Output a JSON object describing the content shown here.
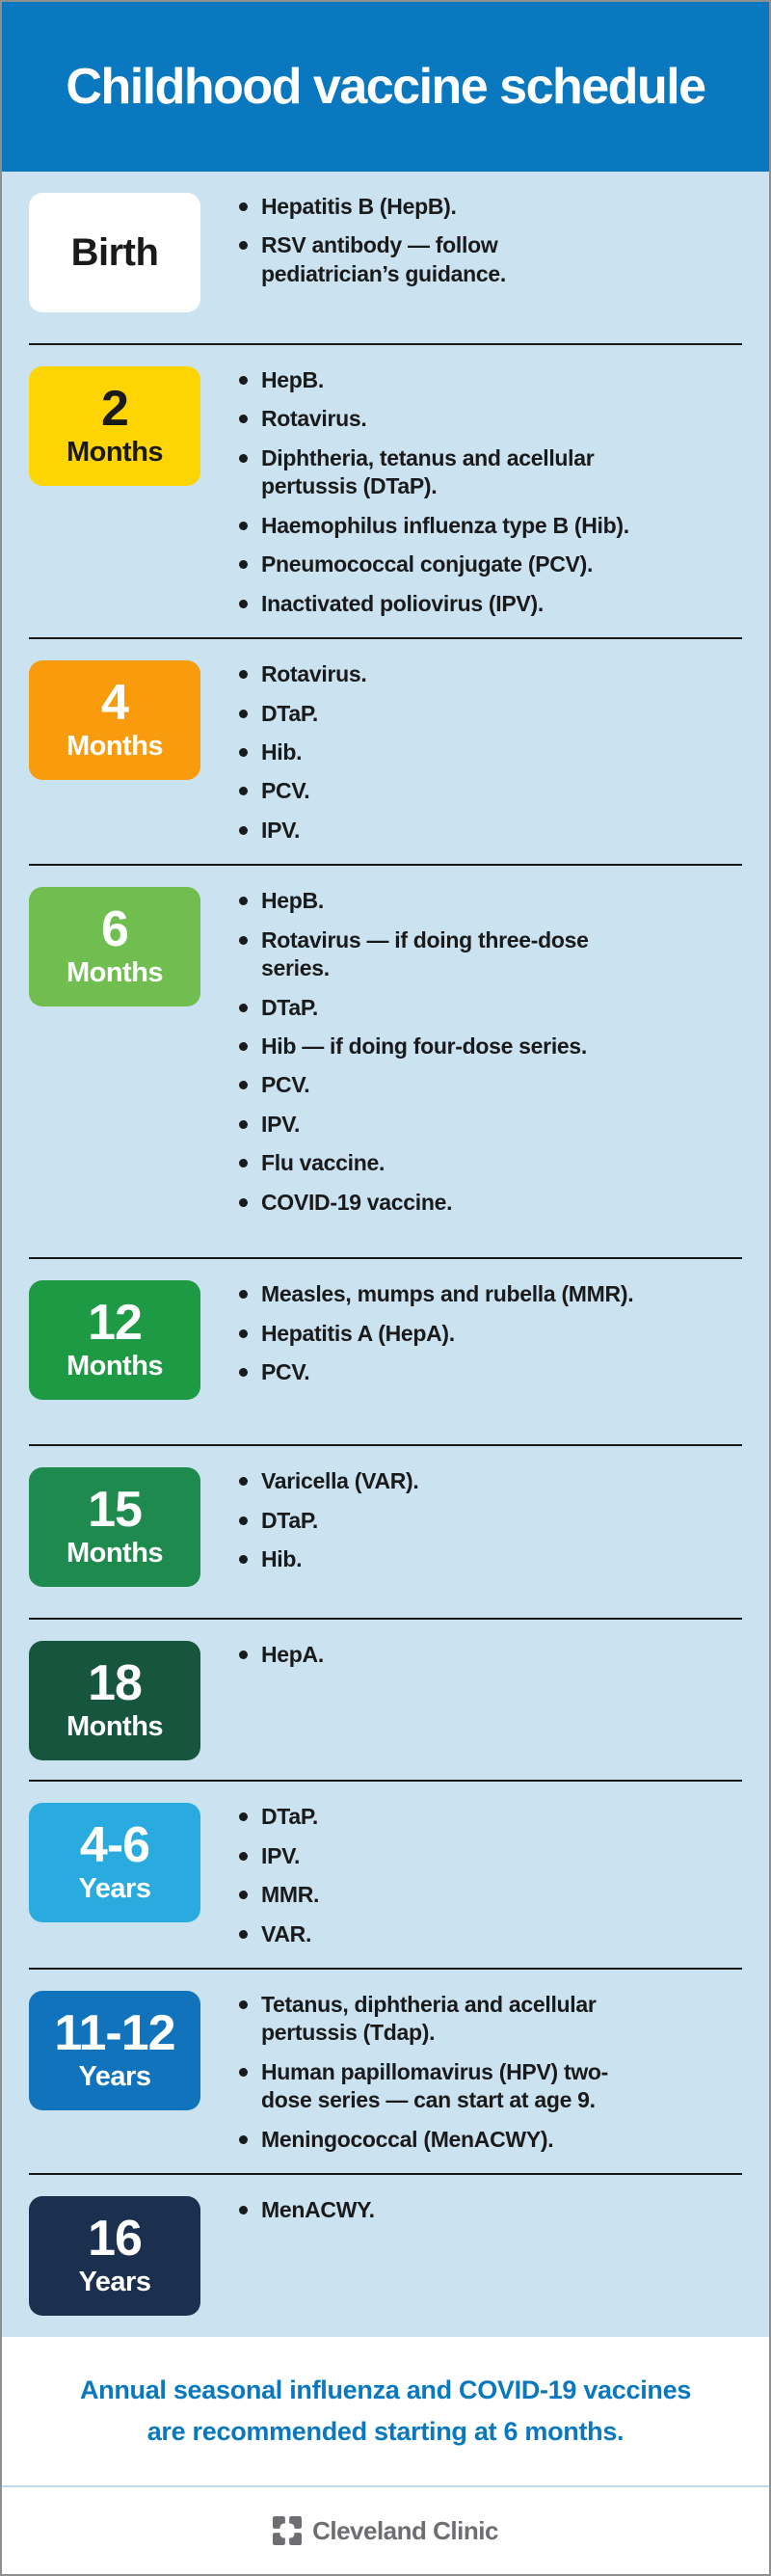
{
  "header": {
    "title": "Childhood vaccine schedule",
    "bg_color": "#0A78BE"
  },
  "colors": {
    "body_bg": "#CBE2F0",
    "divider": "#1A1A1A",
    "note_text": "#0A78BE",
    "logo_gray": "#6D6E71"
  },
  "sections": [
    {
      "age": "Birth",
      "unit": "",
      "bg": "#FFFFFF",
      "fg": "#1A1A1A",
      "items": [
        "Hepatitis B (HepB).",
        "RSV antibody — follow\npediatrician’s guidance."
      ]
    },
    {
      "age": "2",
      "unit": "Months",
      "bg": "#FFD403",
      "fg": "#1A1A1A",
      "items": [
        "HepB.",
        "Rotavirus.",
        "Diphtheria, tetanus and acellular\npertussis (DTaP).",
        "Haemophilus influenza type B (Hib).",
        "Pneumococcal conjugate (PCV).",
        "Inactivated poliovirus (IPV)."
      ]
    },
    {
      "age": "4",
      "unit": "Months",
      "bg": "#F89C0E",
      "fg": "#FFFFFF",
      "items": [
        "Rotavirus.",
        "DTaP.",
        "Hib.",
        "PCV.",
        "IPV."
      ]
    },
    {
      "age": "6",
      "unit": "Months",
      "bg": "#6FBE4F",
      "fg": "#FFFFFF",
      "items": [
        "HepB.",
        "Rotavirus — if doing three-dose\nseries.",
        "DTaP.",
        "Hib — if doing four-dose series.",
        "PCV.",
        "IPV.",
        "Flu vaccine.",
        "COVID-19 vaccine."
      ]
    },
    {
      "age": "12",
      "unit": "Months",
      "bg": "#1E9944",
      "fg": "#FFFFFF",
      "items": [
        "Measles, mumps and rubella (MMR).",
        "Hepatitis A (HepA).",
        "PCV."
      ]
    },
    {
      "age": "15",
      "unit": "Months",
      "bg": "#1F8A4E",
      "fg": "#FFFFFF",
      "items": [
        "Varicella (VAR).",
        "DTaP.",
        "Hib."
      ]
    },
    {
      "age": "18",
      "unit": "Months",
      "bg": "#16553E",
      "fg": "#FFFFFF",
      "items": [
        "HepA."
      ]
    },
    {
      "age": "4-6",
      "unit": "Years",
      "bg": "#29ABDF",
      "fg": "#FFFFFF",
      "items": [
        "DTaP.",
        "IPV.",
        "MMR.",
        "VAR."
      ]
    },
    {
      "age": "11-12",
      "unit": "Years",
      "bg": "#1173BB",
      "fg": "#FFFFFF",
      "items": [
        "Tetanus, diphtheria and acellular\npertussis (Tdap).",
        "Human papillomavirus (HPV) two-\ndose series — can start at age 9.",
        "Meningococcal (MenACWY)."
      ]
    },
    {
      "age": "16",
      "unit": "Years",
      "bg": "#1B2F4F",
      "fg": "#FFFFFF",
      "items": [
        "MenACWY."
      ]
    }
  ],
  "footer": {
    "note": "Annual seasonal influenza and COVID-19 vaccines\nare recommended starting at 6 months.",
    "brand": "Cleveland Clinic"
  }
}
